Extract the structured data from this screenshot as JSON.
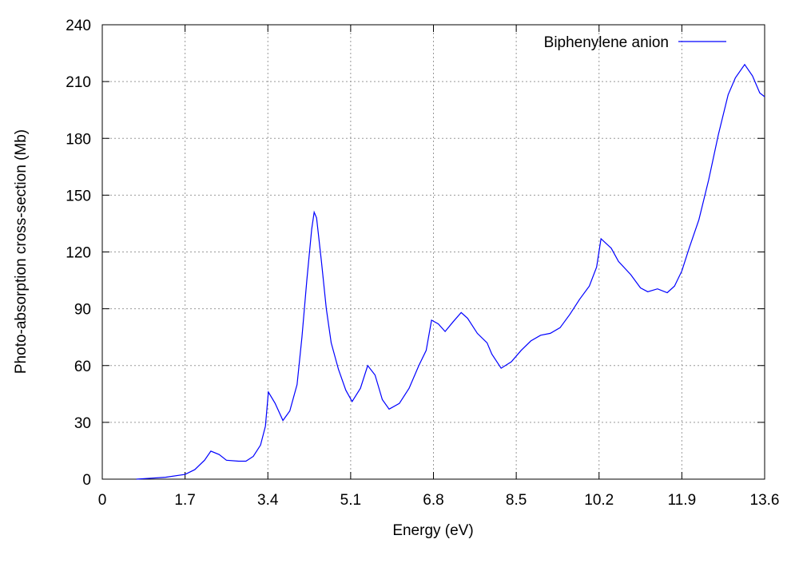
{
  "chart_data": {
    "type": "line",
    "xlabel": "Energy (eV)",
    "ylabel": "Photo-absorption cross-section (Mb)",
    "x": [
      0.7,
      1.0,
      1.3,
      1.7,
      1.9,
      2.1,
      2.23,
      2.4,
      2.55,
      2.8,
      2.95,
      3.1,
      3.25,
      3.35,
      3.41,
      3.55,
      3.71,
      3.85,
      4.0,
      4.1,
      4.2,
      4.3,
      4.35,
      4.4,
      4.5,
      4.6,
      4.7,
      4.85,
      5.0,
      5.13,
      5.3,
      5.45,
      5.6,
      5.75,
      5.89,
      6.1,
      6.3,
      6.5,
      6.65,
      6.76,
      6.9,
      7.04,
      7.2,
      7.37,
      7.5,
      7.7,
      7.9,
      8.0,
      8.19,
      8.4,
      8.6,
      8.8,
      9.0,
      9.2,
      9.4,
      9.6,
      9.8,
      10.0,
      10.15,
      10.24,
      10.45,
      10.6,
      10.85,
      11.05,
      11.2,
      11.4,
      11.6,
      11.75,
      11.9,
      12.05,
      12.25,
      12.45,
      12.65,
      12.85,
      13.0,
      13.19,
      13.35,
      13.5,
      13.6
    ],
    "series": [
      {
        "name": "Biphenylene anion",
        "color": "#0000ff",
        "values": [
          0,
          0.5,
          1,
          2.5,
          5,
          10,
          14.8,
          13,
          10,
          9.5,
          9.5,
          12,
          18,
          28,
          46,
          40,
          31,
          36,
          50,
          75,
          105,
          132,
          141,
          138,
          115,
          90,
          72,
          58,
          47,
          41,
          48,
          60,
          55,
          42,
          37,
          40,
          48,
          60,
          68,
          84,
          82,
          78,
          83,
          88,
          85,
          77,
          72,
          66,
          58.6,
          62,
          68,
          73,
          76,
          77,
          80,
          87,
          95,
          102,
          112,
          127,
          122,
          115,
          108,
          101,
          99,
          100.5,
          98.5,
          102,
          110,
          122,
          137,
          158,
          182,
          203,
          212,
          219,
          213,
          204,
          202
        ]
      }
    ],
    "xlim": [
      0,
      13.6
    ],
    "xticks": [
      0,
      1.7,
      3.4,
      5.1,
      6.8,
      8.5,
      10.2,
      11.9,
      13.6
    ],
    "ylim": [
      0,
      240
    ],
    "yticks": [
      0,
      30,
      60,
      90,
      120,
      150,
      180,
      210,
      240
    ],
    "grid": true,
    "legend": "top-right"
  }
}
